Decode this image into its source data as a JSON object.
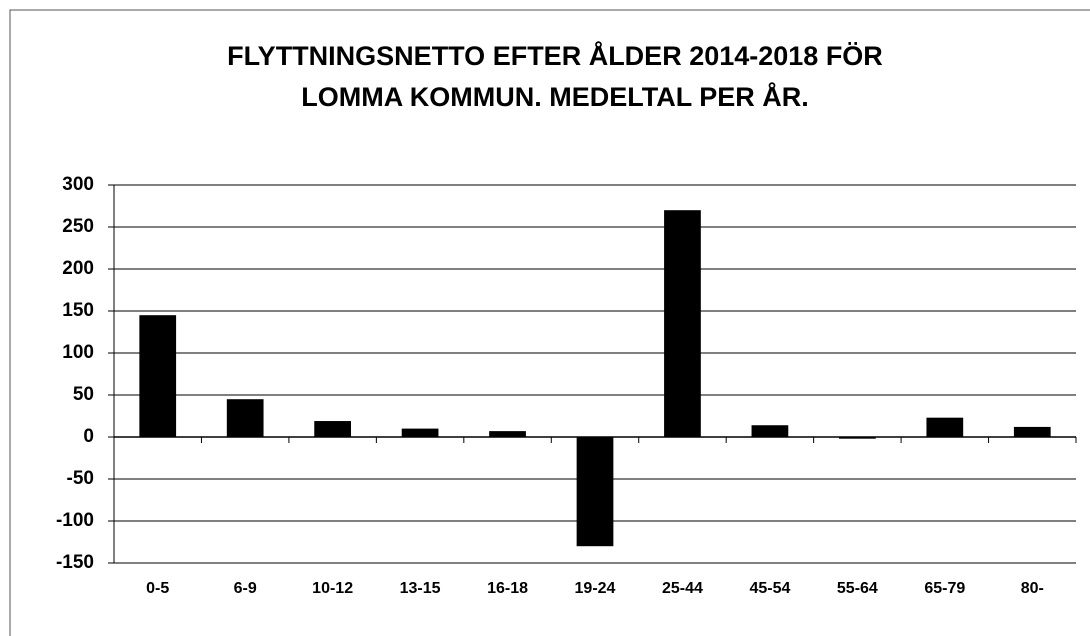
{
  "chart_data": {
    "type": "bar",
    "title": [
      "FLYTTNINGSNETTO EFTER ÅLDER 2014-2018 FÖR",
      "LOMMA KOMMUN. MEDELTAL PER ÅR."
    ],
    "categories": [
      "0-5",
      "6-9",
      "10-12",
      "13-15",
      "16-18",
      "19-24",
      "25-44",
      "45-54",
      "55-64",
      "65-79",
      "80-"
    ],
    "values": [
      145,
      45,
      19,
      10,
      7,
      -130,
      270,
      14,
      -2,
      23,
      12
    ],
    "color": "#000000",
    "ylim": [
      -150,
      300
    ],
    "yticks": [
      -150,
      -100,
      -50,
      0,
      50,
      100,
      150,
      200,
      250,
      300
    ],
    "grid": true
  }
}
